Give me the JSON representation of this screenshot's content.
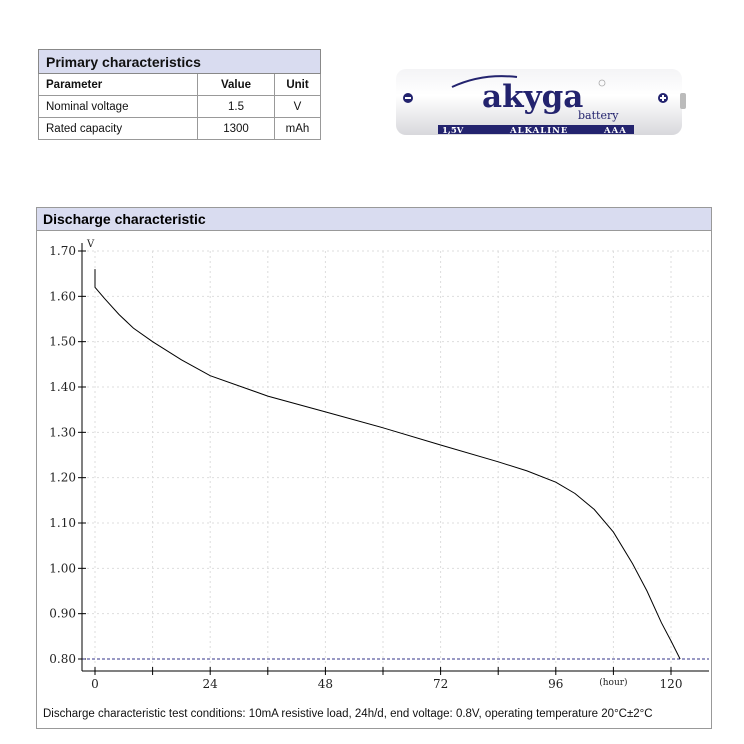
{
  "primary": {
    "title": "Primary characteristics",
    "headers": [
      "Parameter",
      "Value",
      "Unit"
    ],
    "rows": [
      [
        "Nominal voltage",
        "1.5",
        "V"
      ],
      [
        "Rated capacity",
        "1300",
        "mAh"
      ]
    ]
  },
  "battery": {
    "brand": "akyga",
    "sub": "battery",
    "voltage": "1,5V",
    "chem": "ALKALINE",
    "size": "AAA",
    "color": "#23236e"
  },
  "discharge": {
    "title": "Discharge characteristic",
    "conditions": "Discharge characteristic test conditions: 10mA resistive load, 24h/d, end voltage: 0.8V, operating temperature 20°C±2°C"
  },
  "chart_data": {
    "type": "line",
    "xlabel": "(hour)",
    "ylabel": "V",
    "xlim": [
      0,
      128
    ],
    "ylim": [
      0.8,
      1.7
    ],
    "x_ticks": [
      0,
      24,
      48,
      72,
      96,
      120
    ],
    "y_ticks": [
      "1.70",
      "1.60",
      "1.50",
      "1.40",
      "1.30",
      "1.20",
      "1.10",
      "1.00",
      "0.90",
      "0.80"
    ],
    "grid": true,
    "end_voltage_line": 0.8,
    "series": [
      {
        "x": [
          0,
          0,
          2,
          5,
          8,
          12,
          18,
          24,
          36,
          48,
          60,
          72,
          84,
          90,
          96,
          100,
          104,
          108,
          112,
          115,
          118,
          120,
          121.9
        ],
        "y": [
          1.66,
          1.62,
          1.595,
          1.56,
          1.53,
          1.5,
          1.46,
          1.425,
          1.38,
          1.345,
          1.31,
          1.272,
          1.235,
          1.215,
          1.19,
          1.165,
          1.13,
          1.08,
          1.01,
          0.95,
          0.88,
          0.84,
          0.8
        ]
      }
    ]
  }
}
